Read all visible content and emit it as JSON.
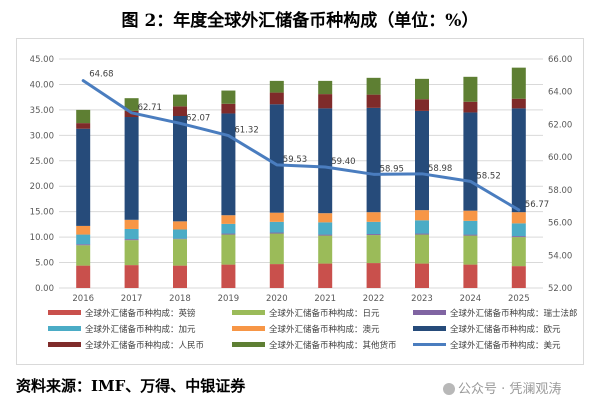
{
  "title": "图 2：年度全球外汇储备币种构成（单位：%）",
  "source": "资料来源：IMF、万得、中银证券",
  "watermark": "公众号 · 凭澜观涛",
  "colors": {
    "gbp": "#c9504c",
    "jpy": "#9bbb59",
    "chf": "#8064a2",
    "cad": "#4bacc6",
    "aud": "#f79646",
    "eur": "#264b7a",
    "rmb": "#7f2b2a",
    "other": "#5e7f33",
    "usd": "#4a7dbf",
    "axis_text": "#595959",
    "grid": "#d9d9d9"
  },
  "chart_data": {
    "type": "bar",
    "stacked": true,
    "categories": [
      "2016",
      "2017",
      "2018",
      "2019",
      "2020",
      "2021",
      "2022",
      "2023",
      "2024",
      "2025"
    ],
    "ylim": [
      0,
      45
    ],
    "yticks": [
      "0.00",
      "5.00",
      "10.00",
      "15.00",
      "20.00",
      "25.00",
      "30.00",
      "35.00",
      "40.00",
      "45.00"
    ],
    "y2lim": [
      52,
      66
    ],
    "y2ticks": [
      "52.00",
      "54.00",
      "56.00",
      "58.00",
      "60.00",
      "62.00",
      "64.00",
      "66.00"
    ],
    "series": [
      {
        "key": "gbp",
        "name": "全球外汇储备币种构成：英镑",
        "values": [
          4.4,
          4.5,
          4.4,
          4.6,
          4.7,
          4.8,
          4.9,
          4.8,
          4.6,
          4.3
        ]
      },
      {
        "key": "jpy",
        "name": "全球外汇储备币种构成：日元",
        "values": [
          4.0,
          4.9,
          5.2,
          5.9,
          6.0,
          5.5,
          5.5,
          5.7,
          5.7,
          5.7
        ]
      },
      {
        "key": "chf",
        "name": "全球外汇储备币种构成：瑞士法郎",
        "values": [
          0.2,
          0.2,
          0.1,
          0.2,
          0.2,
          0.2,
          0.2,
          0.2,
          0.2,
          0.2
        ]
      },
      {
        "key": "cad",
        "name": "全球外汇储备币种构成：加元",
        "values": [
          1.9,
          2.0,
          1.8,
          1.9,
          2.1,
          2.4,
          2.4,
          2.6,
          2.7,
          2.5
        ]
      },
      {
        "key": "aud",
        "name": "全球外汇储备币种构成：澳元",
        "values": [
          1.7,
          1.8,
          1.6,
          1.7,
          1.8,
          1.8,
          1.9,
          2.0,
          2.0,
          2.2
        ]
      },
      {
        "key": "eur",
        "name": "全球外汇储备币种构成：欧元",
        "values": [
          19.1,
          20.2,
          20.7,
          20.0,
          21.3,
          20.6,
          20.5,
          19.5,
          19.3,
          20.4
        ]
      },
      {
        "key": "rmb",
        "name": "全球外汇储备币种构成：人民币",
        "values": [
          1.1,
          1.2,
          1.9,
          1.9,
          2.3,
          2.8,
          2.6,
          2.3,
          2.1,
          1.9
        ]
      },
      {
        "key": "other",
        "name": "全球外汇储备币种构成：其他货币",
        "values": [
          2.6,
          2.5,
          2.3,
          2.6,
          2.3,
          2.6,
          3.3,
          4.0,
          4.9,
          6.1
        ]
      }
    ],
    "line": {
      "key": "usd",
      "name": "全球外汇储备币种构成：美元",
      "axis": "right",
      "values": [
        64.68,
        62.71,
        62.07,
        61.32,
        59.53,
        59.4,
        58.95,
        58.98,
        58.52,
        56.77
      ],
      "labels": [
        "64.68",
        "62.71",
        "62.07",
        "61.32",
        "59.53",
        "59.40",
        "58.95",
        "58.98",
        "58.52",
        "56.77"
      ]
    },
    "legend_position": "bottom",
    "grid": true
  }
}
